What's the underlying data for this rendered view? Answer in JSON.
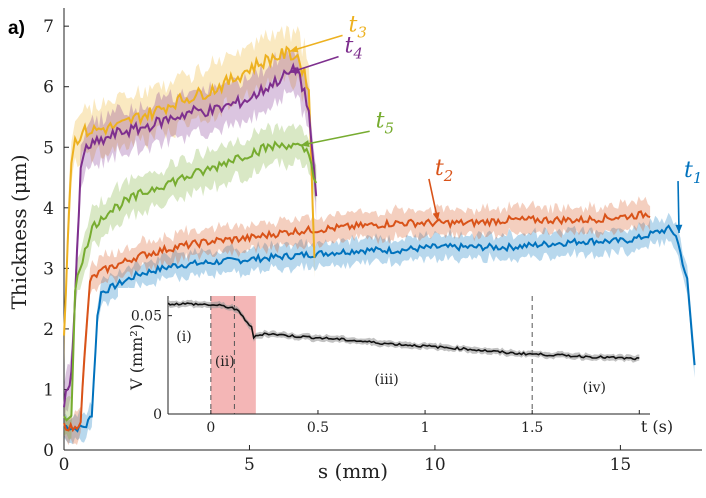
{
  "chart_data": [
    {
      "type": "line",
      "panel_label": "a)",
      "xlabel": "s (mm)",
      "ylabel": "Thickness (μm)",
      "xlim": [
        0,
        17.2
      ],
      "ylim": [
        0,
        7.3
      ],
      "xticks": [
        0,
        5,
        10,
        15
      ],
      "yticks": [
        0,
        1,
        2,
        3,
        4,
        5,
        6,
        7
      ],
      "series": [
        {
          "name": "t1",
          "sub": "1",
          "color": "#0072BD",
          "x": [
            0,
            0.3,
            0.6,
            0.75,
            0.9,
            1,
            1.5,
            2,
            3,
            4,
            5,
            6,
            7,
            8,
            9,
            10,
            11,
            12,
            13,
            14,
            15,
            15.5,
            16,
            16.3,
            16.5,
            16.8,
            17.0
          ],
          "y": [
            0.4,
            0.35,
            0.4,
            0.6,
            2.2,
            2.6,
            2.75,
            2.9,
            3.05,
            3.1,
            3.15,
            3.2,
            3.25,
            3.3,
            3.3,
            3.35,
            3.35,
            3.35,
            3.4,
            3.45,
            3.45,
            3.5,
            3.6,
            3.65,
            3.55,
            2.8,
            1.4
          ],
          "band": 0.2
        },
        {
          "name": "t2",
          "sub": "2",
          "color": "#D95319",
          "x": [
            0,
            0.3,
            0.45,
            0.55,
            0.7,
            1,
            2,
            3,
            4,
            5,
            6,
            7,
            8,
            9,
            10,
            11,
            12,
            13,
            14,
            15,
            15.8
          ],
          "y": [
            0.4,
            0.35,
            0.5,
            1.5,
            2.8,
            2.95,
            3.2,
            3.35,
            3.45,
            3.5,
            3.6,
            3.65,
            3.7,
            3.75,
            3.75,
            3.75,
            3.8,
            3.8,
            3.8,
            3.85,
            3.9
          ],
          "band": 0.22
        },
        {
          "name": "t3",
          "sub": "3",
          "color": "#EDB120",
          "x": [
            0,
            0.1,
            0.2,
            0.25,
            0.3,
            0.5,
            1,
            1.5,
            2,
            2.5,
            3,
            3.5,
            4,
            4.5,
            5,
            5.5,
            6,
            6.3,
            6.6,
            6.75
          ],
          "y": [
            1.9,
            3.5,
            4.8,
            5.0,
            5.1,
            5.25,
            5.3,
            5.35,
            5.5,
            5.6,
            5.75,
            5.85,
            5.95,
            6.1,
            6.3,
            6.45,
            6.55,
            6.5,
            6.0,
            3.2
          ],
          "band": 0.4
        },
        {
          "name": "t4",
          "sub": "4",
          "color": "#7E2F8E",
          "x": [
            0,
            0.1,
            0.2,
            0.3,
            0.45,
            0.6,
            1,
            1.5,
            2,
            2.5,
            3,
            3.5,
            4,
            4.5,
            5,
            5.5,
            6,
            6.3,
            6.6,
            6.8
          ],
          "y": [
            0.8,
            1.0,
            1.3,
            2.5,
            4.6,
            5.0,
            5.1,
            5.25,
            5.3,
            5.4,
            5.5,
            5.6,
            5.6,
            5.7,
            5.8,
            6.0,
            6.2,
            6.3,
            5.6,
            4.1
          ],
          "band": 0.35
        },
        {
          "name": "t5",
          "sub": "5",
          "color": "#77AC30",
          "x": [
            0,
            0.2,
            0.3,
            0.5,
            0.7,
            1,
            1.5,
            2,
            2.5,
            3,
            3.5,
            4,
            4.5,
            5,
            5.5,
            6,
            6.3,
            6.6,
            6.8
          ],
          "y": [
            0.5,
            0.6,
            2.7,
            3.1,
            3.6,
            3.85,
            4.05,
            4.2,
            4.35,
            4.45,
            4.55,
            4.65,
            4.8,
            4.9,
            5.0,
            5.05,
            5.0,
            4.9,
            4.4
          ],
          "band": 0.3
        }
      ],
      "annotations": [
        {
          "series": "t3",
          "text": "t",
          "sub": "3"
        },
        {
          "series": "t4",
          "text": "t",
          "sub": "4"
        },
        {
          "series": "t5",
          "text": "t",
          "sub": "5"
        },
        {
          "series": "t2",
          "text": "t",
          "sub": "2"
        },
        {
          "series": "t1",
          "text": "t",
          "sub": "1"
        }
      ]
    },
    {
      "type": "line",
      "role": "inset",
      "xlabel": "t (s)",
      "ylabel": "V (mm²)",
      "xlim": [
        -0.2,
        2.05
      ],
      "ylim": [
        0,
        0.06
      ],
      "xticks": [
        0,
        0.5,
        1,
        1.5,
        2
      ],
      "xticklabels": [
        "0",
        "0.5",
        "1",
        "1.5",
        ""
      ],
      "yticks": [
        0,
        0.05
      ],
      "yticklabels": [
        "0",
        "0.05"
      ],
      "highlight_range": [
        0,
        0.21
      ],
      "highlight_color": "#f4b6b6",
      "dashed_lines": [
        0,
        0.11,
        1.5
      ],
      "phases": [
        "(i)",
        "(ii)",
        "(iii)",
        "(iv)"
      ],
      "series": [
        {
          "name": "V",
          "color": "#111111",
          "x": [
            -0.2,
            -0.1,
            0,
            0.05,
            0.1,
            0.13,
            0.16,
            0.19,
            0.2,
            0.25,
            0.4,
            0.6,
            0.8,
            1.0,
            1.2,
            1.4,
            1.5,
            1.7,
            1.9,
            2.0
          ],
          "y": [
            0.056,
            0.056,
            0.0555,
            0.055,
            0.054,
            0.052,
            0.048,
            0.044,
            0.039,
            0.041,
            0.0395,
            0.038,
            0.036,
            0.0345,
            0.033,
            0.031,
            0.0305,
            0.0295,
            0.0285,
            0.028
          ],
          "band": 0.0015
        }
      ]
    }
  ]
}
